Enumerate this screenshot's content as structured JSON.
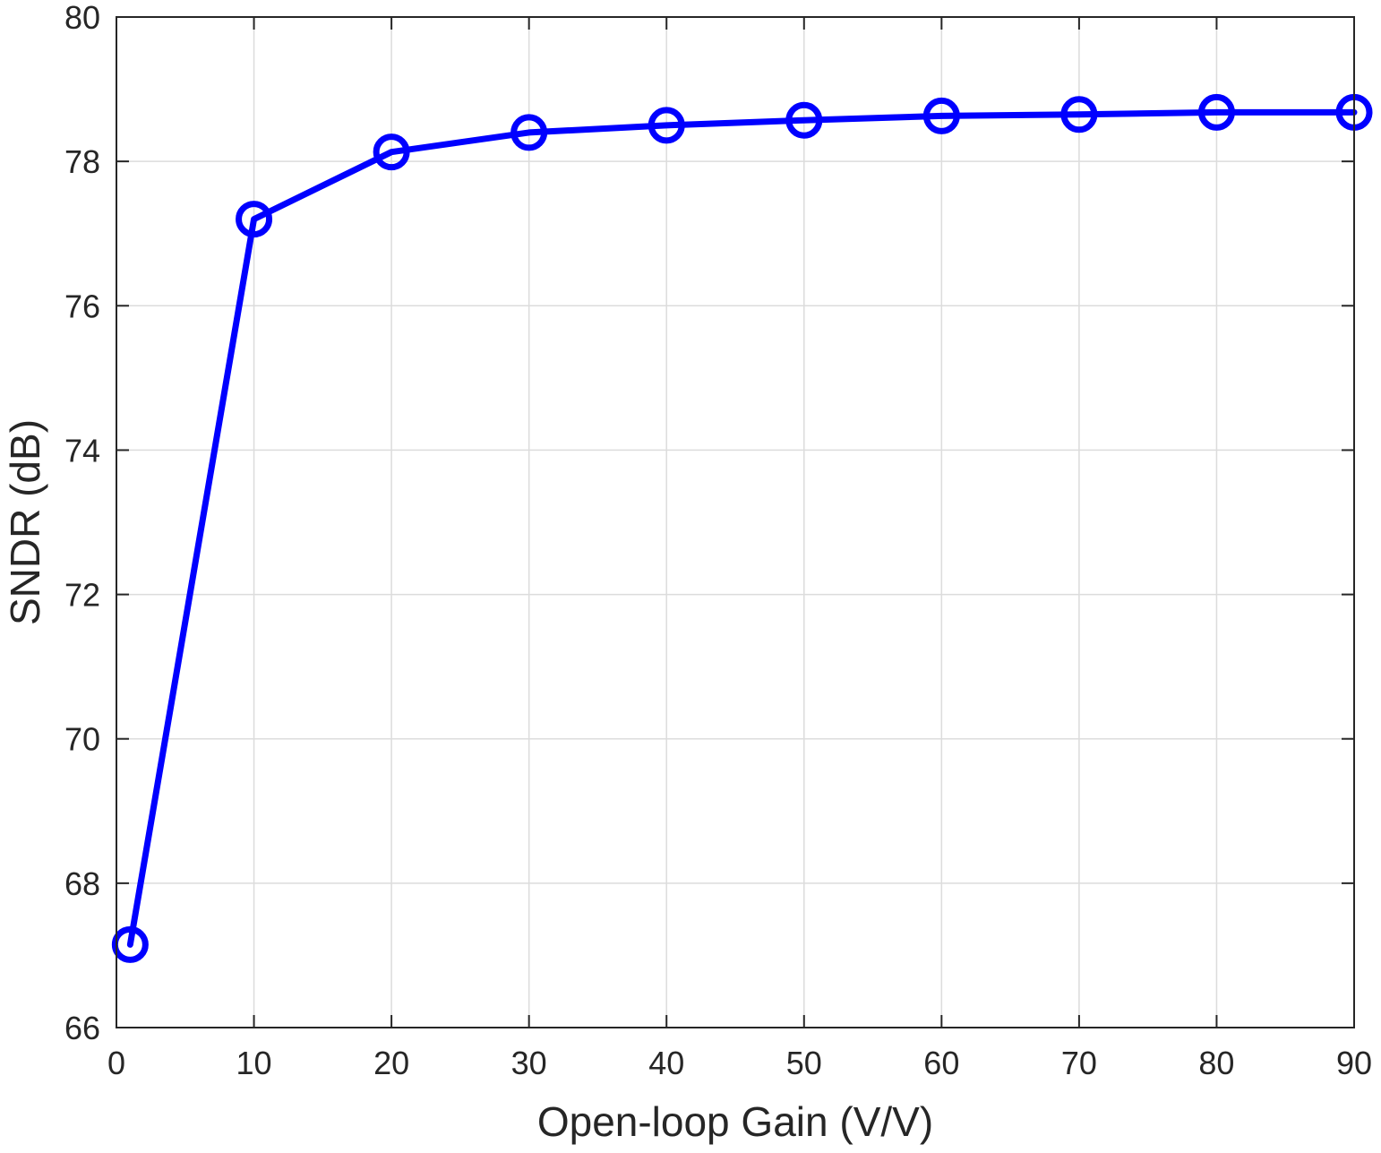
{
  "chart_data": {
    "type": "line",
    "title": "",
    "xlabel": "Open-loop Gain (V/V)",
    "ylabel": "SNDR (dB)",
    "xlim": [
      0,
      90
    ],
    "ylim": [
      66,
      80
    ],
    "xticks": [
      0,
      10,
      20,
      30,
      40,
      50,
      60,
      70,
      80,
      90
    ],
    "yticks": [
      66,
      68,
      70,
      72,
      74,
      76,
      78,
      80
    ],
    "grid": true,
    "legend": "none",
    "series": [
      {
        "color": "#0000ff",
        "marker": "circle",
        "x": [
          1,
          10,
          20,
          30,
          40,
          50,
          60,
          70,
          80,
          90
        ],
        "y": [
          67.15,
          77.2,
          78.13,
          78.4,
          78.5,
          78.57,
          78.63,
          78.65,
          78.68,
          78.68
        ]
      }
    ],
    "colors": {
      "axis": "#262626",
      "grid": "#dcdcdc",
      "background": "#ffffff"
    }
  }
}
